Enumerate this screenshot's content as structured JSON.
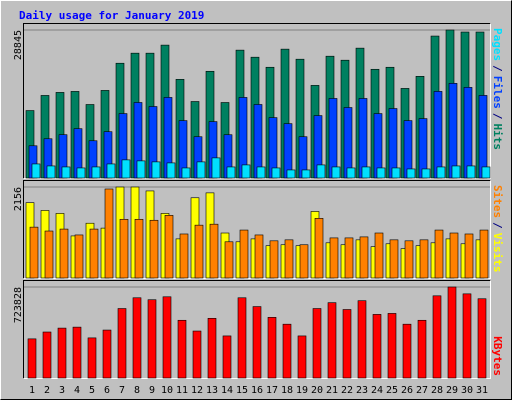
{
  "chart_data": [
    {
      "type": "bar",
      "title": "Daily usage for January 2019",
      "ylim": [
        0,
        28845
      ],
      "yticks": [
        28845
      ],
      "separator": "/",
      "grid": true,
      "series": [
        {
          "name": "Pages",
          "color": "#00e0ff",
          "values": [
            2740,
            2350,
            2155,
            1960,
            2155,
            2740,
            3530,
            3335,
            3140,
            2940,
            1960,
            3140,
            3920,
            2155,
            2550,
            2155,
            1960,
            1570,
            1570,
            2550,
            2155,
            1960,
            2155,
            1960,
            1960,
            1765,
            1765,
            2155,
            2350,
            2350,
            2155
          ]
        },
        {
          "name": "Files",
          "color": "#0040ff",
          "values": [
            6280,
            7650,
            8440,
            9615,
            7260,
            9025,
            12555,
            14715,
            13930,
            15700,
            11185,
            8045,
            10990,
            8435,
            15700,
            14325,
            11770,
            10595,
            8045,
            12165,
            15500,
            13735,
            15500,
            12555,
            13540,
            11185,
            11575,
            16875,
            18445,
            17660,
            16090
          ]
        },
        {
          "name": "Hits",
          "color": "#008060",
          "values": [
            13147,
            16090,
            16680,
            16875,
            14325,
            17070,
            22370,
            24330,
            24330,
            25900,
            19230,
            14910,
            20800,
            14715,
            24920,
            23545,
            21585,
            25115,
            23155,
            18050,
            23740,
            22960,
            25310,
            21190,
            21585,
            17460,
            19820,
            27665,
            28845,
            28450,
            28450
          ]
        }
      ]
    },
    {
      "type": "bar",
      "ylim": [
        0,
        2156
      ],
      "yticks": [
        2156
      ],
      "separator": "/",
      "grid": true,
      "series": [
        {
          "name": "Sites",
          "color": "#ff8000",
          "values": [
            1205,
            1113,
            1159,
            1020,
            1159,
            2109,
            1391,
            1391,
            1368,
            1484,
            1043,
            1252,
            1275,
            858,
            1136,
            1020,
            881,
            904,
            788,
            1414,
            950,
            950,
            974,
            1066,
            904,
            881,
            904,
            1136,
            1066,
            1043,
            1136
          ]
        },
        {
          "name": "Visits",
          "color": "#ffff00",
          "values": [
            1785,
            1600,
            1530,
            997,
            1298,
            1182,
            2156,
            2156,
            2063,
            1530,
            927,
            1901,
            2017,
            1066,
            858,
            927,
            765,
            788,
            765,
            1576,
            834,
            788,
            904,
            742,
            811,
            695,
            765,
            834,
            927,
            811,
            904
          ]
        }
      ]
    },
    {
      "type": "bar",
      "ylim": [
        0,
        723828
      ],
      "yticks": [
        723828
      ],
      "grid": true,
      "categories": [
        "1",
        "2",
        "3",
        "4",
        "5",
        "6",
        "7",
        "8",
        "9",
        "10",
        "11",
        "12",
        "13",
        "14",
        "15",
        "16",
        "17",
        "18",
        "19",
        "20",
        "21",
        "22",
        "23",
        "24",
        "25",
        "26",
        "27",
        "28",
        "29",
        "30",
        "31"
      ],
      "category_colors": [
        "#000080",
        "#000080",
        "#000080",
        "#000080",
        "#00805c",
        "#00805c",
        "#000080",
        "#000080",
        "#000080",
        "#000080",
        "#000080",
        "#00805c",
        "#00805c",
        "#000080",
        "#000080",
        "#000080",
        "#000080",
        "#000080",
        "#00805c",
        "#00805c",
        "#000080",
        "#000080",
        "#000080",
        "#000080",
        "#000080",
        "#00805c",
        "#00805c",
        "#000080",
        "#000080",
        "#000080",
        "#000080"
      ],
      "series": [
        {
          "name": "KBytes",
          "color": "#ff0000",
          "values": [
            311320,
            365800,
            396930,
            404700,
            319100,
            381370,
            552600,
            638200,
            622640,
            645990,
            459200,
            373580,
            474760,
            334670,
            638200,
            568160,
            482550,
            428060,
            334670,
            552600,
            599290,
            544810,
            614860,
            505890,
            513680,
            428060,
            459200,
            653770,
            723828,
            669340,
            630420
          ]
        }
      ]
    }
  ]
}
